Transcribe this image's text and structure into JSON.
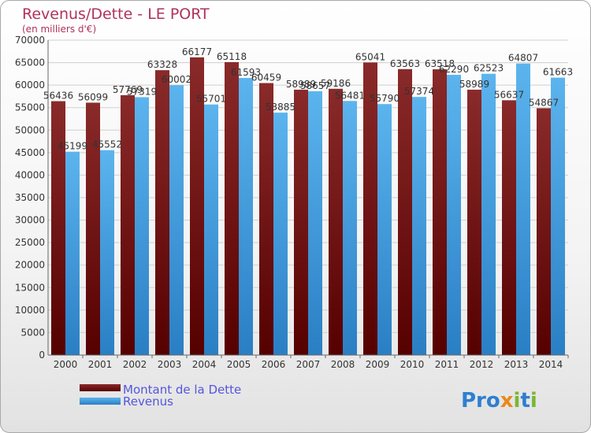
{
  "chart_data": {
    "type": "bar",
    "title": "Revenus/Dette - LE PORT",
    "subtitle": "(en milliers d'€)",
    "categories": [
      "2000",
      "2001",
      "2002",
      "2003",
      "2004",
      "2005",
      "2006",
      "2007",
      "2008",
      "2009",
      "2010",
      "2011",
      "2012",
      "2013",
      "2014"
    ],
    "series": [
      {
        "name": "Montant de la Dette",
        "color": "#7b1c1c",
        "values": [
          56436,
          56099,
          57769,
          63328,
          66177,
          65118,
          60459,
          58989,
          59186,
          65041,
          63563,
          63518,
          58989,
          56637,
          54867
        ],
        "labels": [
          "56436",
          "56099",
          "57769",
          "63328",
          "66177",
          "65118",
          "60459",
          "58989",
          "59186",
          "65041",
          "63563",
          "63518",
          "58989",
          "56637",
          "54867"
        ]
      },
      {
        "name": "Revenus",
        "color": "#3d9ee0",
        "values": [
          45199,
          45552,
          57319,
          60002,
          55701,
          61593,
          53885,
          58657,
          56481,
          55790,
          57374,
          62290,
          62523,
          64807,
          61663
        ],
        "labels": [
          "45199",
          "45552",
          "57319",
          "60002",
          "55701",
          "61593",
          "53885",
          "58657",
          "56481",
          "55790",
          "57374",
          "62290",
          "62523",
          "64807",
          "61663"
        ]
      }
    ],
    "yticks": [
      0,
      5000,
      10000,
      15000,
      20000,
      25000,
      30000,
      35000,
      40000,
      45000,
      50000,
      55000,
      60000,
      65000,
      70000
    ],
    "ylim": [
      0,
      70000
    ],
    "grid": true,
    "legend": "bottom-left"
  },
  "brand": {
    "logo_text": "Proxiti"
  }
}
